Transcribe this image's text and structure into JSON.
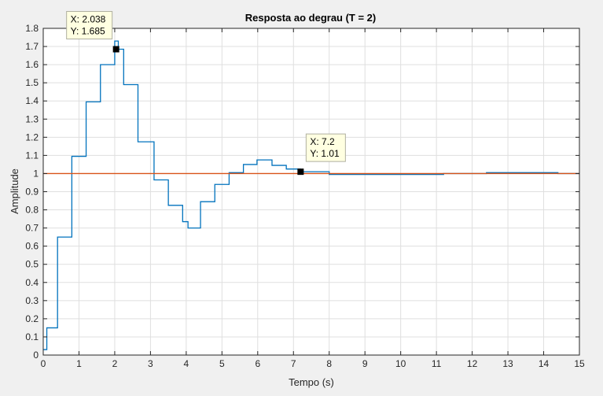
{
  "chart_data": {
    "type": "line",
    "title": "Resposta ao degrau (T = 2)",
    "xlabel": "Tempo (s)",
    "ylabel": "Amplitude",
    "xlim": [
      0,
      15
    ],
    "ylim": [
      0,
      1.8
    ],
    "xticks": [
      "0",
      "1",
      "2",
      "3",
      "4",
      "5",
      "6",
      "7",
      "8",
      "9",
      "10",
      "11",
      "12",
      "13",
      "14",
      "15"
    ],
    "yticks": [
      "0",
      "0.1",
      "0.2",
      "0.3",
      "0.4",
      "0.5",
      "0.6",
      "0.7",
      "0.8",
      "0.9",
      "1",
      "1.1",
      "1.2",
      "1.3",
      "1.4",
      "1.5",
      "1.6",
      "1.7",
      "1.8"
    ],
    "grid": true,
    "series": [
      {
        "color": "#0072bd",
        "style": "stairs",
        "x": [
          0,
          0.1,
          0.4,
          0.8,
          1.2,
          1.6,
          2.0,
          2.1,
          2.25,
          2.65,
          3.1,
          3.5,
          3.9,
          4.05,
          4.4,
          4.8,
          5.2,
          5.6,
          5.98,
          6.4,
          6.8,
          7.2,
          7.6,
          8.0,
          10.4,
          11.2,
          12.4,
          14.4
        ],
        "y": [
          0.03,
          0.15,
          0.65,
          1.095,
          1.395,
          1.6,
          1.73,
          1.685,
          1.49,
          1.175,
          0.965,
          0.825,
          0.735,
          0.7,
          0.845,
          0.94,
          1.005,
          1.05,
          1.075,
          1.045,
          1.025,
          1.01,
          1.01,
          0.995,
          0.995,
          1.0,
          1.005,
          1.0
        ]
      },
      {
        "color": "#d95319",
        "style": "line",
        "x": [
          0,
          15
        ],
        "y": [
          1,
          1
        ]
      }
    ],
    "annotations": [
      {
        "x": 2.038,
        "y": 1.685,
        "x_label": "X: 2.038",
        "y_label": "Y: 1.685"
      },
      {
        "x": 7.2,
        "y": 1.01,
        "x_label": "X: 7.2",
        "y_label": "Y: 1.01"
      }
    ]
  }
}
